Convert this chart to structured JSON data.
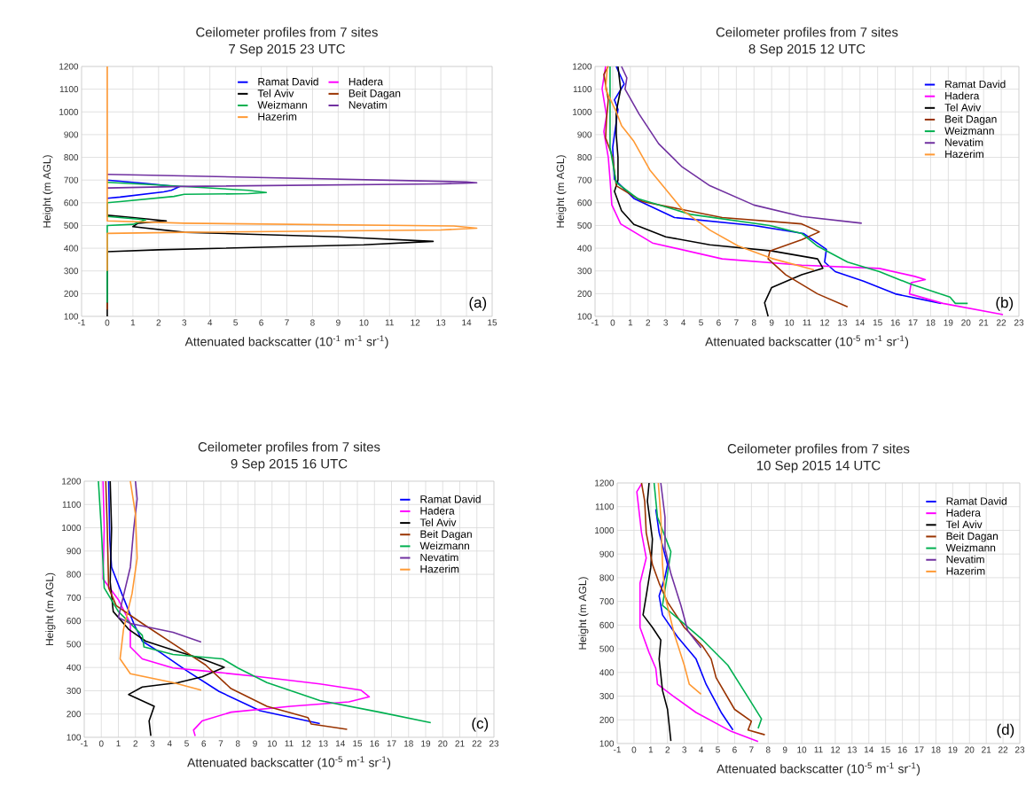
{
  "chart_data": [
    {
      "type": "line",
      "title": "Ceilometer profiles from 7 sites",
      "subtitle": "7 Sep 2015 23 UTC",
      "xlabel": "Attenuated backscatter (10$^{-1}$ m$^{-1}$ sr$^{-1}$)",
      "ylabel": "Height (m AGL)",
      "annotations": [
        "(a)"
      ],
      "xlim": [
        -1,
        15
      ],
      "ylim": [
        100,
        1200
      ],
      "xticks": [
        -1,
        0,
        1,
        2,
        3,
        4,
        5,
        6,
        7,
        8,
        9,
        10,
        11,
        12,
        13,
        14,
        15
      ],
      "yticks": [
        100,
        200,
        300,
        400,
        500,
        600,
        700,
        800,
        900,
        1000,
        1100,
        1200
      ],
      "grid": true,
      "legend": "top",
      "marker": "none",
      "line_style": "solid",
      "series": [
        {
          "name": "Ramat David",
          "color": "#0000ff",
          "x": [
            0,
            1.5,
            2.8,
            2.5,
            2.2,
            0.5,
            0
          ],
          "values": [
            700,
            685,
            670,
            655,
            648,
            625,
            620
          ]
        },
        {
          "name": "Hadera",
          "color": "#ff00ff"
        },
        {
          "name": "Tel Aviv",
          "color": "#000000",
          "x": [
            0,
            1,
            2.3,
            1.2,
            1,
            3,
            9,
            12.7,
            10,
            2,
            0,
            0
          ],
          "values": [
            545,
            535,
            520,
            510,
            495,
            470,
            450,
            430,
            415,
            393,
            385,
            100
          ]
        },
        {
          "name": "Beit Dagan",
          "color": "#993300",
          "x": [
            0,
            0
          ],
          "values": [
            160,
            130
          ]
        },
        {
          "name": "Weizmann",
          "color": "#00b050",
          "x": [
            0,
            2,
            5.5,
            6.2,
            5.5,
            3,
            2.6,
            0.5,
            0,
            0,
            1.5,
            1,
            0,
            0
          ],
          "values": [
            690,
            678,
            655,
            645,
            640,
            637,
            628,
            605,
            600,
            540,
            525,
            505,
            500,
            160
          ]
        },
        {
          "name": "Nevatim",
          "color": "#7030a0",
          "x": [
            0,
            3,
            14,
            14.4,
            13,
            3,
            0
          ],
          "values": [
            725,
            718,
            692,
            688,
            683,
            672,
            665
          ]
        },
        {
          "name": "Hazerim",
          "color": "#ff9933",
          "x": [
            0,
            0,
            3,
            13.5,
            14.4,
            13,
            3,
            0,
            0
          ],
          "values": [
            1200,
            520,
            510,
            498,
            488,
            480,
            470,
            465,
            300
          ]
        }
      ]
    },
    {
      "type": "line",
      "title": "Ceilometer profiles from 7 sites",
      "subtitle": "8 Sep 2015 12 UTC",
      "xlabel": "Attenuated backscatter (10$^{-5}$ m$^{-1}$ sr$^{-1}$)",
      "ylabel": "Height (m AGL)",
      "annotations": [
        "(b)"
      ],
      "xlim": [
        -1,
        23
      ],
      "ylim": [
        100,
        1200
      ],
      "xticks": [
        -1,
        0,
        1,
        2,
        3,
        4,
        5,
        6,
        7,
        8,
        9,
        10,
        11,
        12,
        13,
        14,
        15,
        16,
        17,
        18,
        19,
        20,
        21,
        22,
        23
      ],
      "yticks": [
        100,
        200,
        300,
        400,
        500,
        600,
        700,
        800,
        900,
        1000,
        1100,
        1200
      ],
      "grid": true,
      "legend": "top right",
      "marker": "none",
      "line_style": "solid",
      "series": [
        {
          "name": "Ramat David",
          "color": "#0000ff",
          "x": [
            0.2,
            0.65,
            0.1,
            0.3,
            0,
            0.1,
            1.2,
            3.5,
            8,
            10.8,
            12.1,
            12,
            12.6,
            14.2,
            16,
            18.6
          ],
          "values": [
            1200,
            1123,
            1053,
            1011,
            843,
            703,
            619,
            535,
            500,
            465,
            395,
            339,
            297,
            255,
            199,
            157
          ]
        },
        {
          "name": "Hadera",
          "color": "#ff00ff",
          "x": [
            -0.4,
            -0.6,
            -0.35,
            -0.5,
            -0.25,
            -0.15,
            -0.05,
            0.45,
            2.25,
            6.2,
            10.7,
            15.1,
            17.1,
            17.7,
            16.9,
            16.8,
            18.7,
            22.1
          ],
          "values": [
            1200,
            1102,
            983,
            913,
            801,
            703,
            591,
            507,
            423,
            353,
            325,
            311,
            276,
            262,
            248,
            199,
            157,
            108
          ]
        },
        {
          "name": "Tel Aviv",
          "color": "#000000",
          "x": [
            0.3,
            0.45,
            0.2,
            0.2,
            0.3,
            0.3,
            0.1,
            0.5,
            1.2,
            3,
            5.5,
            9,
            11.6,
            11.9,
            10.7,
            9,
            8.6,
            8.8
          ],
          "values": [
            1200,
            1100,
            1000,
            900,
            800,
            700,
            650,
            565,
            505,
            450,
            415,
            388,
            353,
            312,
            283,
            227,
            160,
            100
          ]
        },
        {
          "name": "Beit Dagan",
          "color": "#993300",
          "x": [
            -0.25,
            -0.5,
            -0.25,
            -0.35,
            -0.4,
            0,
            0.2,
            1.7,
            6.2,
            10.7,
            11.7,
            10.7,
            8.9,
            8.8,
            9.8,
            11.6,
            13.3
          ],
          "values": [
            1200,
            1165,
            1053,
            969,
            885,
            801,
            675,
            605,
            535,
            507,
            472,
            437,
            388,
            353,
            283,
            199,
            142
          ]
        },
        {
          "name": "Weizmann",
          "color": "#00b050",
          "x": [
            -0.15,
            -0.15,
            0.2,
            1.4,
            4.4,
            8.9,
            10.7,
            11.6,
            13.3,
            15.1,
            16.9,
            19.1,
            19.4,
            20.1
          ],
          "values": [
            1200,
            843,
            689,
            619,
            549,
            500,
            465,
            409,
            339,
            297,
            241,
            185,
            157,
            157
          ]
        },
        {
          "name": "Nevatim",
          "color": "#7030a0",
          "x": [
            0.5,
            0.8,
            0.7,
            1.5,
            2.6,
            3.9,
            5.5,
            8,
            10.7,
            14.1
          ],
          "values": [
            1200,
            1150,
            1100,
            990,
            860,
            760,
            675,
            590,
            540,
            510
          ]
        },
        {
          "name": "Hazerim",
          "color": "#ff9933",
          "x": [
            -0.3,
            -0.4,
            0.2,
            0.5,
            1.2,
            2.1,
            3,
            4,
            5.5,
            7.1,
            9,
            11.4
          ],
          "values": [
            1200,
            1100,
            1000,
            940,
            870,
            745,
            660,
            565,
            480,
            410,
            355,
            305
          ]
        }
      ]
    },
    {
      "type": "line",
      "title": "Ceilometer profiles from 7 sites",
      "subtitle": "9 Sep 2015  16 UTC",
      "xlabel": "Attenuated backscatter (10$^{-5}$ m$^{-1}$ sr$^{-1}$)",
      "ylabel": "Height (m AGL)",
      "annotations": [
        "(c)"
      ],
      "xlim": [
        -1,
        23
      ],
      "ylim": [
        100,
        1200
      ],
      "xticks": [
        -1,
        0,
        1,
        2,
        3,
        4,
        5,
        6,
        7,
        8,
        9,
        10,
        11,
        12,
        13,
        14,
        15,
        16,
        17,
        18,
        19,
        20,
        21,
        22,
        23
      ],
      "yticks": [
        100,
        200,
        300,
        400,
        500,
        600,
        700,
        800,
        900,
        1000,
        1100,
        1200
      ],
      "grid": true,
      "legend": "top right",
      "marker": "none",
      "line_style": "solid",
      "series": [
        {
          "name": "Ramat David",
          "color": "#0000ff",
          "x": [
            0.43,
            0.5,
            0.6,
            1.2,
            1.9,
            2.4,
            3.5,
            5,
            6.9,
            9.3,
            12.8
          ],
          "values": [
            1200,
            946,
            831,
            717,
            589,
            513,
            462,
            386,
            297,
            214,
            159
          ]
        },
        {
          "name": "Hadera",
          "color": "#ff00ff",
          "x": [
            0.1,
            0.17,
            0.1,
            1,
            1.7,
            1.7,
            2.4,
            4.2,
            5.9,
            9.3,
            12.8,
            15.2,
            15.7,
            14.5,
            11.1,
            7.6,
            5.9,
            5.4,
            5.5
          ],
          "values": [
            1200,
            996,
            780,
            691,
            589,
            488,
            437,
            398,
            386,
            360,
            329,
            303,
            274,
            252,
            233,
            208,
            170,
            131,
            106
          ]
        },
        {
          "name": "Tel Aviv",
          "color": "#000000",
          "x": [
            0.52,
            0.6,
            0.52,
            0.7,
            1.6,
            2.6,
            4.2,
            5.9,
            7.2,
            5.9,
            4.5,
            2.4,
            1.6,
            3.1,
            2.8,
            2.9
          ],
          "values": [
            1200,
            996,
            767,
            640,
            564,
            513,
            475,
            437,
            401,
            360,
            335,
            316,
            284,
            233,
            170,
            106
          ]
        },
        {
          "name": "Beit Dagan",
          "color": "#993300",
          "x": [
            0.26,
            0.35,
            0.43,
            0.87,
            2.4,
            4.5,
            6.1,
            7.6,
            9.7,
            12.1,
            12.3,
            14.4
          ],
          "values": [
            1200,
            996,
            742,
            666,
            589,
            488,
            411,
            309,
            233,
            185,
            157,
            134
          ]
        },
        {
          "name": "Weizmann",
          "color": "#00b050",
          "x": [
            -0.17,
            0,
            0.17,
            1,
            2.4,
            2.5,
            4.2,
            7.1,
            8,
            9.7,
            12.8,
            16.3,
            19.3
          ],
          "values": [
            1200,
            996,
            742,
            640,
            538,
            488,
            456,
            437,
            398,
            335,
            258,
            208,
            163
          ]
        },
        {
          "name": "Nevatim",
          "color": "#7030a0",
          "x": [
            2,
            2.1,
            1.9,
            1.7,
            1.2,
            1,
            1.7,
            4.2,
            5.85
          ],
          "values": [
            1200,
            1124,
            996,
            831,
            678,
            615,
            589,
            551,
            509
          ]
        },
        {
          "name": "Hazerim",
          "color": "#ff9933",
          "x": [
            1.7,
            2,
            2.1,
            1.8,
            1.3,
            1.1,
            1.7,
            4.2,
            5.85
          ],
          "values": [
            1200,
            1060,
            869,
            717,
            564,
            437,
            373,
            335,
            303
          ]
        }
      ]
    },
    {
      "type": "line",
      "title": "Ceilometer profiles from 7 sites",
      "subtitle": "10 Sep 2015  14 UTC",
      "xlabel": "Attenuated backscatter (10$^{-5}$ m$^{-1}$ sr$^{-1}$)",
      "ylabel": "Height (m AGL)",
      "annotations": [
        "(d)"
      ],
      "xlim": [
        -1,
        23
      ],
      "ylim": [
        100,
        1200
      ],
      "xticks": [
        -1,
        0,
        1,
        2,
        3,
        4,
        5,
        6,
        7,
        8,
        9,
        10,
        11,
        12,
        13,
        14,
        15,
        16,
        17,
        18,
        19,
        20,
        21,
        22,
        23
      ],
      "yticks": [
        100,
        200,
        300,
        400,
        500,
        600,
        700,
        800,
        900,
        1000,
        1100,
        1200
      ],
      "grid": true,
      "legend": "top right",
      "marker": "none",
      "line_style": "solid",
      "series": [
        {
          "name": "Ramat David",
          "color": "#0000ff",
          "x": [
            1.3,
            1.5,
            2,
            1.85,
            1.5,
            1.7,
            2.6,
            3.7,
            4.3,
            5.2,
            5.9
          ],
          "values": [
            1089,
            990,
            856,
            803,
            723,
            643,
            550,
            457,
            350,
            231,
            157
          ]
        },
        {
          "name": "Hadera",
          "color": "#ff00ff",
          "x": [
            0.45,
            0.17,
            0.45,
            0.73,
            0.36,
            0.36,
            0.9,
            1.3,
            1.4,
            2.4,
            3.7,
            5.8,
            7.4
          ],
          "values": [
            1196,
            1163,
            990,
            883,
            777,
            590,
            484,
            417,
            350,
            297,
            231,
            151,
            108
          ]
        },
        {
          "name": "Tel Aviv",
          "color": "#000000",
          "x": [
            0.9,
            0.8,
            1.1,
            1,
            0.73,
            0.54,
            1.1,
            1.6,
            1.5,
            1.7,
            2,
            2.2
          ],
          "values": [
            1200,
            1123,
            963,
            843,
            723,
            643,
            590,
            537,
            457,
            324,
            244,
            111
          ]
        },
        {
          "name": "Beit Dagan",
          "color": "#993300",
          "x": [
            0.45,
            0.64,
            0.73,
            1.1,
            1.5,
            2,
            3,
            4.1,
            4.6,
            4.9,
            6,
            7,
            6.8,
            7.8
          ],
          "values": [
            1200,
            1123,
            990,
            856,
            777,
            697,
            590,
            510,
            457,
            377,
            244,
            194,
            157,
            137
          ]
        },
        {
          "name": "Weizmann",
          "color": "#00b050",
          "x": [
            1.2,
            1.4,
            2.2,
            2,
            1.7,
            2.8,
            4.1,
            5.6,
            6.9,
            7.6,
            7.4
          ],
          "values": [
            1200,
            1056,
            910,
            817,
            683,
            617,
            537,
            430,
            284,
            204,
            164
          ]
        },
        {
          "name": "Nevatim",
          "color": "#7030a0",
          "x": [
            1.6,
            1.85,
            1.85,
            2.2,
            2.8,
            3.2,
            4
          ],
          "values": [
            1200,
            1056,
            923,
            817,
            683,
            577,
            504
          ]
        },
        {
          "name": "Hazerim",
          "color": "#ff9933",
          "x": [
            1.45,
            1.6,
            1.7,
            1.85,
            2.4,
            3,
            3.3,
            4
          ],
          "values": [
            1200,
            1056,
            856,
            723,
            563,
            430,
            350,
            308
          ]
        }
      ]
    }
  ]
}
